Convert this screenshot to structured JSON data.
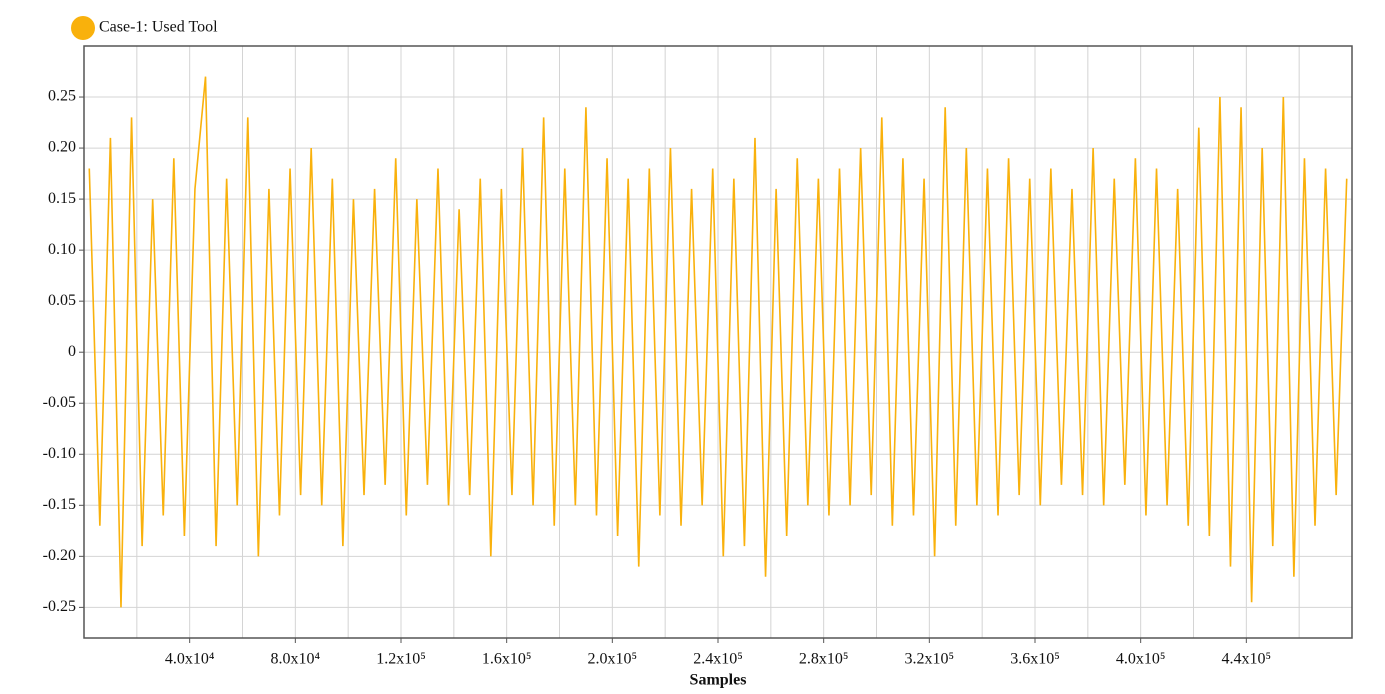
{
  "chart_data": {
    "type": "line",
    "legend": "top-left",
    "grid": true,
    "x_label": "Samples",
    "xlim": [
      0,
      480000
    ],
    "ylim": [
      -0.28,
      0.3
    ],
    "xticks": [
      {
        "value": 40000,
        "label": "4.0x10⁴"
      },
      {
        "value": 80000,
        "label": "8.0x10⁴"
      },
      {
        "value": 120000,
        "label": "1.2x10⁵"
      },
      {
        "value": 160000,
        "label": "1.6x10⁵"
      },
      {
        "value": 200000,
        "label": "2.0x10⁵"
      },
      {
        "value": 240000,
        "label": "2.4x10⁵"
      },
      {
        "value": 280000,
        "label": "2.8x10⁵"
      },
      {
        "value": 320000,
        "label": "3.2x10⁵"
      },
      {
        "value": 360000,
        "label": "3.6x10⁵"
      },
      {
        "value": 400000,
        "label": "4.0x10⁵"
      },
      {
        "value": 440000,
        "label": "4.4x10⁵"
      }
    ],
    "yticks": [
      0.25,
      {
        "value": 0.2,
        "label": "0.20"
      },
      0.15,
      {
        "value": 0.1,
        "label": "0.10"
      },
      0.05,
      0,
      -0.05,
      {
        "value": -0.1,
        "label": "-0.10"
      },
      -0.15,
      {
        "value": -0.2,
        "label": "-0.20"
      },
      -0.25
    ],
    "x": [
      2000,
      6000,
      10000,
      14000,
      18000,
      22000,
      26000,
      30000,
      34000,
      38000,
      42000,
      46000,
      50000,
      54000,
      58000,
      62000,
      66000,
      70000,
      74000,
      78000,
      82000,
      86000,
      90000,
      94000,
      98000,
      102000,
      106000,
      110000,
      114000,
      118000,
      122000,
      126000,
      130000,
      134000,
      138000,
      142000,
      146000,
      150000,
      154000,
      158000,
      162000,
      166000,
      170000,
      174000,
      178000,
      182000,
      186000,
      190000,
      194000,
      198000,
      202000,
      206000,
      210000,
      214000,
      218000,
      222000,
      226000,
      230000,
      234000,
      238000,
      242000,
      246000,
      250000,
      254000,
      258000,
      262000,
      266000,
      270000,
      274000,
      278000,
      282000,
      286000,
      290000,
      294000,
      298000,
      302000,
      306000,
      310000,
      314000,
      318000,
      322000,
      326000,
      330000,
      334000,
      338000,
      342000,
      346000,
      350000,
      354000,
      358000,
      362000,
      366000,
      370000,
      374000,
      378000,
      382000,
      386000,
      390000,
      394000,
      398000,
      402000,
      406000,
      410000,
      414000,
      418000,
      422000,
      426000,
      430000,
      434000,
      438000,
      442000,
      446000,
      450000,
      454000,
      458000,
      462000,
      466000,
      470000,
      474000,
      478000
    ],
    "series": [
      {
        "name": "Case-1: Used Tool",
        "color": "#f9b10c",
        "values": [
          0.18,
          -0.17,
          0.21,
          -0.25,
          0.23,
          -0.19,
          0.15,
          -0.16,
          0.19,
          -0.18,
          0.16,
          0.27,
          -0.19,
          0.17,
          -0.15,
          0.23,
          -0.2,
          0.16,
          -0.16,
          0.18,
          -0.14,
          0.2,
          -0.15,
          0.17,
          -0.19,
          0.15,
          -0.14,
          0.16,
          -0.13,
          0.19,
          -0.16,
          0.15,
          -0.13,
          0.18,
          -0.15,
          0.14,
          -0.14,
          0.17,
          -0.2,
          0.16,
          -0.14,
          0.2,
          -0.15,
          0.23,
          -0.17,
          0.18,
          -0.15,
          0.24,
          -0.16,
          0.19,
          -0.18,
          0.17,
          -0.21,
          0.18,
          -0.16,
          0.2,
          -0.17,
          0.16,
          -0.15,
          0.18,
          -0.2,
          0.17,
          -0.19,
          0.21,
          -0.22,
          0.16,
          -0.18,
          0.19,
          -0.15,
          0.17,
          -0.16,
          0.18,
          -0.15,
          0.2,
          -0.14,
          0.23,
          -0.17,
          0.19,
          -0.16,
          0.17,
          -0.2,
          0.24,
          -0.17,
          0.2,
          -0.15,
          0.18,
          -0.16,
          0.19,
          -0.14,
          0.17,
          -0.15,
          0.18,
          -0.13,
          0.16,
          -0.14,
          0.2,
          -0.15,
          0.17,
          -0.13,
          0.19,
          -0.16,
          0.18,
          -0.15,
          0.16,
          -0.17,
          0.22,
          -0.18,
          0.25,
          -0.21,
          0.24,
          -0.245,
          0.2,
          -0.19,
          0.25,
          -0.22,
          0.19,
          -0.17,
          0.18,
          -0.14,
          0.17
        ]
      }
    ]
  }
}
